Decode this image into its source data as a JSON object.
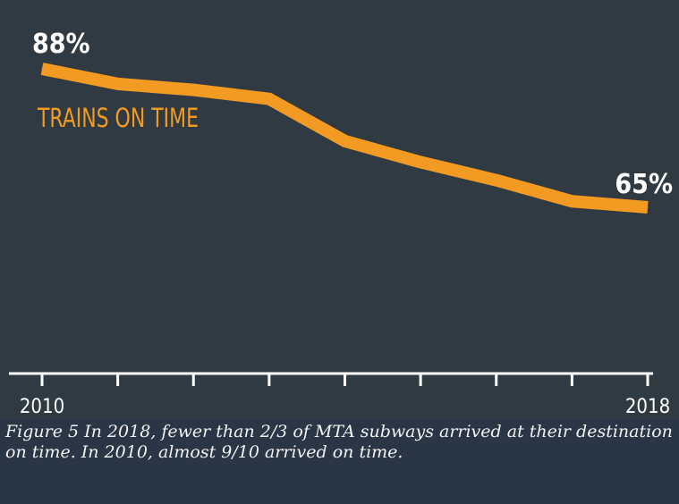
{
  "figure": {
    "caption": "Figure 5 In 2018, fewer than 2/3 of MTA subways arrived at their destination on time. In 2010, almost 9/10 arrived on time."
  },
  "colors": {
    "background": "#2f3a42",
    "line": "#f39a22",
    "axis": "#ffffff",
    "caption_background": "#2a3545"
  },
  "chart_data": {
    "type": "line",
    "title": "",
    "xlabel": "",
    "ylabel": "",
    "series_label": "TRAINS ON TIME",
    "x": [
      2010,
      2011,
      2012,
      2013,
      2014,
      2015,
      2016,
      2017,
      2018
    ],
    "xtick_labels": [
      "2010",
      "",
      "",
      "",
      "",
      "",
      "",
      "",
      "2018"
    ],
    "series": [
      {
        "values": [
          88,
          85.5,
          84.5,
          83,
          76,
          72.5,
          69.5,
          66,
          65
        ]
      }
    ],
    "data_labels": [
      {
        "index": 0,
        "text": "88%"
      },
      {
        "index": 8,
        "text": "65%"
      }
    ],
    "ylim": [
      45,
      92
    ],
    "grid": false
  }
}
